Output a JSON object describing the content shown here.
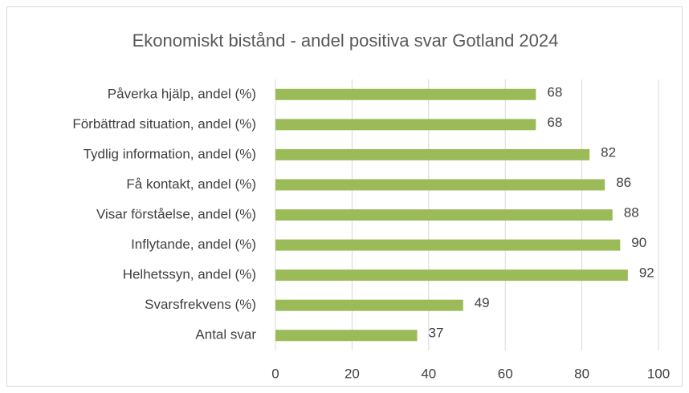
{
  "chart_data": {
    "type": "hbar",
    "title": "Ekonomiskt bistånd - andel positiva svar Gotland 2024",
    "categories": [
      "Påverka hjälp, andel (%)",
      "Förbättrad situation, andel (%)",
      "Tydlig information, andel (%)",
      "Få kontakt, andel (%)",
      "Visar förståelse, andel (%)",
      "Inflytande, andel (%)",
      "Helhetssyn, andel (%)",
      "Svarsfrekvens (%)",
      "Antal svar"
    ],
    "values": [
      68,
      68,
      82,
      86,
      88,
      90,
      92,
      49,
      37
    ],
    "color": "#9bbb59",
    "xlim": [
      0,
      100
    ],
    "xticks": [
      0,
      20,
      40,
      60,
      80,
      100
    ],
    "grid": true
  }
}
